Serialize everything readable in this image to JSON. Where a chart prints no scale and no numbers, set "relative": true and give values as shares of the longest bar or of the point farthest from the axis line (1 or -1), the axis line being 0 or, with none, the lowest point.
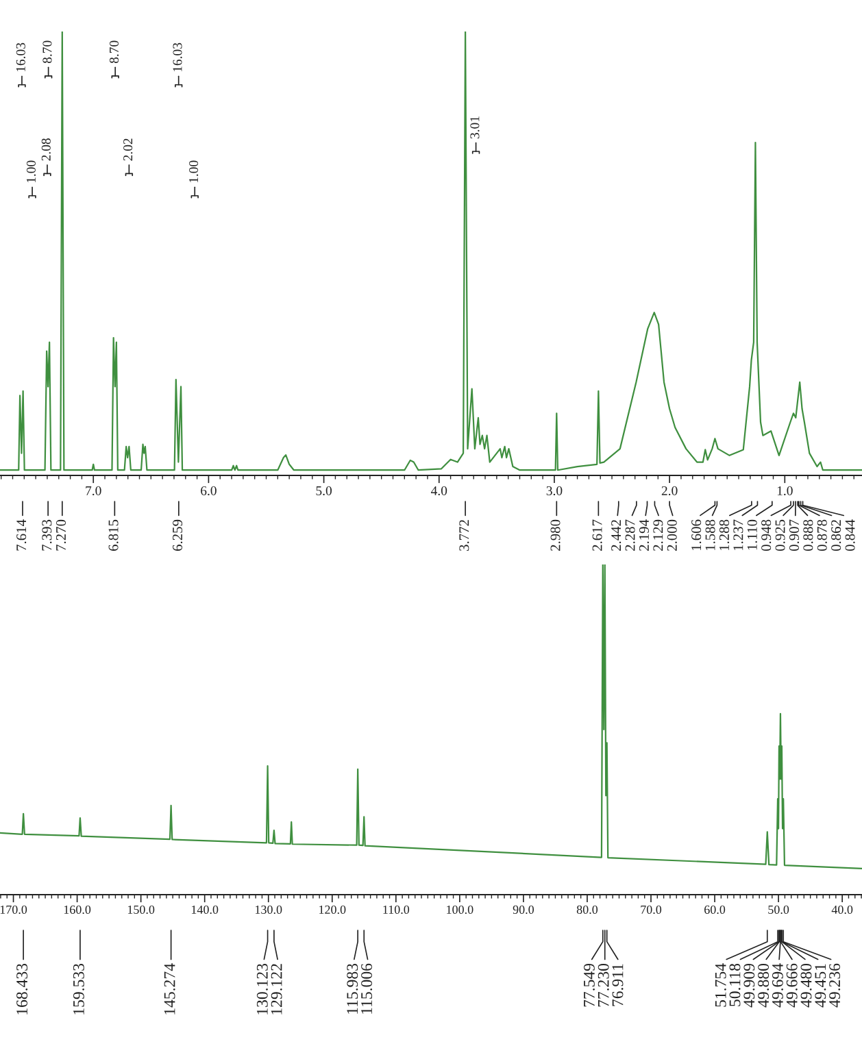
{
  "chart_data": [
    {
      "type": "line",
      "relative": true,
      "color": "#3f8f3f",
      "x": [
        7.81,
        7.648,
        7.637,
        7.623,
        7.61,
        7.598,
        7.42,
        7.405,
        7.393,
        7.381,
        7.368,
        7.285,
        7.27,
        7.255,
        7.01,
        7.0,
        6.99,
        6.838,
        6.825,
        6.812,
        6.8,
        6.788,
        6.73,
        6.715,
        6.703,
        6.69,
        6.675,
        6.585,
        6.57,
        6.56,
        6.55,
        6.535,
        6.296,
        6.283,
        6.262,
        6.24,
        6.228,
        5.8,
        5.785,
        5.772,
        5.757,
        5.745,
        5.4,
        5.35,
        5.33,
        5.3,
        5.26,
        4.3,
        4.25,
        4.22,
        4.18,
        3.98,
        3.9,
        3.84,
        3.79,
        3.772,
        3.752,
        3.715,
        3.69,
        3.66,
        3.645,
        3.625,
        3.605,
        3.585,
        3.56,
        3.47,
        3.455,
        3.43,
        3.415,
        3.395,
        3.36,
        3.3,
        2.99,
        2.98,
        2.97,
        2.8,
        2.63,
        2.617,
        2.604,
        2.57,
        2.43,
        2.29,
        2.19,
        2.133,
        2.095,
        2.048,
        2.0,
        1.952,
        1.857,
        1.762,
        1.71,
        1.69,
        1.67,
        1.63,
        1.606,
        1.58,
        1.48,
        1.36,
        1.305,
        1.29,
        1.27,
        1.255,
        1.24,
        1.21,
        1.19,
        1.12,
        1.05,
        0.952,
        0.925,
        0.905,
        0.87,
        0.85,
        0.83,
        0.786,
        0.72,
        0.69,
        0.67,
        0.33
      ],
      "values": [
        0.012,
        0.012,
        0.18,
        0.05,
        0.19,
        0.012,
        0.012,
        0.28,
        0.2,
        0.3,
        0.012,
        0.012,
        1.0,
        0.012,
        0.012,
        0.025,
        0.012,
        0.012,
        0.31,
        0.2,
        0.3,
        0.012,
        0.012,
        0.065,
        0.04,
        0.065,
        0.012,
        0.012,
        0.07,
        0.05,
        0.065,
        0.012,
        0.012,
        0.216,
        0.03,
        0.2,
        0.012,
        0.012,
        0.022,
        0.012,
        0.022,
        0.012,
        0.012,
        0.04,
        0.046,
        0.025,
        0.012,
        0.012,
        0.034,
        0.03,
        0.012,
        0.015,
        0.036,
        0.03,
        0.05,
        1.0,
        0.06,
        0.195,
        0.06,
        0.13,
        0.07,
        0.09,
        0.06,
        0.09,
        0.03,
        0.06,
        0.04,
        0.065,
        0.04,
        0.06,
        0.02,
        0.012,
        0.012,
        0.14,
        0.012,
        0.02,
        0.025,
        0.19,
        0.028,
        0.03,
        0.06,
        0.21,
        0.33,
        0.367,
        0.34,
        0.21,
        0.15,
        0.108,
        0.06,
        0.03,
        0.03,
        0.058,
        0.035,
        0.06,
        0.083,
        0.06,
        0.045,
        0.058,
        0.2,
        0.26,
        0.3,
        0.75,
        0.3,
        0.12,
        0.09,
        0.1,
        0.045,
        0.12,
        0.14,
        0.13,
        0.21,
        0.15,
        0.12,
        0.05,
        0.02,
        0.03,
        0.012,
        0.012
      ],
      "xlim": [
        7.81,
        0.33
      ],
      "xticks": [
        {
          "value": 7.8,
          "label": null
        },
        {
          "value": 7.7,
          "label": null
        },
        {
          "value": 7.6,
          "label": null
        },
        {
          "value": 7.5,
          "label": null
        },
        {
          "value": 7.4,
          "label": null
        },
        {
          "value": 7.3,
          "label": null
        },
        {
          "value": 7.2,
          "label": null
        },
        {
          "value": 7.1,
          "label": null
        },
        {
          "value": 7.0,
          "label": "7.0"
        },
        {
          "value": 6.9,
          "label": null
        },
        {
          "value": 6.8,
          "label": null
        },
        {
          "value": 6.7,
          "label": null
        },
        {
          "value": 6.6,
          "label": null
        },
        {
          "value": 6.5,
          "label": null
        },
        {
          "value": 6.4,
          "label": null
        },
        {
          "value": 6.3,
          "label": null
        },
        {
          "value": 6.2,
          "label": null
        },
        {
          "value": 6.1,
          "label": null
        },
        {
          "value": 6.0,
          "label": "6.0"
        },
        {
          "value": 5.9,
          "label": null
        },
        {
          "value": 5.8,
          "label": null
        },
        {
          "value": 5.7,
          "label": null
        },
        {
          "value": 5.6,
          "label": null
        },
        {
          "value": 5.5,
          "label": null
        },
        {
          "value": 5.4,
          "label": null
        },
        {
          "value": 5.3,
          "label": null
        },
        {
          "value": 5.2,
          "label": null
        },
        {
          "value": 5.1,
          "label": null
        },
        {
          "value": 5.0,
          "label": "5.0"
        },
        {
          "value": 4.9,
          "label": null
        },
        {
          "value": 4.8,
          "label": null
        },
        {
          "value": 4.7,
          "label": null
        },
        {
          "value": 4.6,
          "label": null
        },
        {
          "value": 4.5,
          "label": null
        },
        {
          "value": 4.4,
          "label": null
        },
        {
          "value": 4.3,
          "label": null
        },
        {
          "value": 4.2,
          "label": null
        },
        {
          "value": 4.1,
          "label": null
        },
        {
          "value": 4.0,
          "label": "4.0"
        },
        {
          "value": 3.9,
          "label": null
        },
        {
          "value": 3.8,
          "label": null
        },
        {
          "value": 3.7,
          "label": null
        },
        {
          "value": 3.6,
          "label": null
        },
        {
          "value": 3.5,
          "label": null
        },
        {
          "value": 3.4,
          "label": null
        },
        {
          "value": 3.3,
          "label": null
        },
        {
          "value": 3.2,
          "label": null
        },
        {
          "value": 3.1,
          "label": null
        },
        {
          "value": 3.0,
          "label": "3.0"
        },
        {
          "value": 2.9,
          "label": null
        },
        {
          "value": 2.8,
          "label": null
        },
        {
          "value": 2.7,
          "label": null
        },
        {
          "value": 2.6,
          "label": null
        },
        {
          "value": 2.5,
          "label": null
        },
        {
          "value": 2.4,
          "label": null
        },
        {
          "value": 2.3,
          "label": null
        },
        {
          "value": 2.2,
          "label": null
        },
        {
          "value": 2.1,
          "label": null
        },
        {
          "value": 2.0,
          "label": "2.0"
        },
        {
          "value": 1.9,
          "label": null
        },
        {
          "value": 1.8,
          "label": null
        },
        {
          "value": 1.7,
          "label": null
        },
        {
          "value": 1.6,
          "label": null
        },
        {
          "value": 1.5,
          "label": null
        },
        {
          "value": 1.4,
          "label": null
        },
        {
          "value": 1.3,
          "label": null
        },
        {
          "value": 1.2,
          "label": null
        },
        {
          "value": 1.1,
          "label": null
        },
        {
          "value": 1.0,
          "label": "1.0"
        },
        {
          "value": 0.9,
          "label": null
        },
        {
          "value": 0.8,
          "label": null
        },
        {
          "value": 0.7,
          "label": null
        },
        {
          "value": 0.6,
          "label": null
        },
        {
          "value": 0.5,
          "label": null
        },
        {
          "value": 0.4,
          "label": null
        }
      ],
      "annotations": [
        {
          "text": "16.03",
          "x": 7.62,
          "y": 0.88
        },
        {
          "text": "8.70",
          "x": 7.39,
          "y": 0.9
        },
        {
          "text": "8.70",
          "x": 6.81,
          "y": 0.9
        },
        {
          "text": "16.03",
          "x": 6.26,
          "y": 0.88
        },
        {
          "text": "1.00",
          "x": 7.53,
          "y": 0.63
        },
        {
          "text": "2.08",
          "x": 7.4,
          "y": 0.68
        },
        {
          "text": "2.02",
          "x": 6.69,
          "y": 0.68
        },
        {
          "text": "1.00",
          "x": 6.12,
          "y": 0.63
        },
        {
          "text": "3.01",
          "x": 3.68,
          "y": 0.73
        },
        {
          "text": "7.614",
          "x": 7.614
        },
        {
          "text": "7.393",
          "x": 7.393
        },
        {
          "text": "7.270",
          "x": 7.27
        },
        {
          "text": "6.815",
          "x": 6.815
        },
        {
          "text": "6.259",
          "x": 6.259
        },
        {
          "text": "3.772",
          "x": 3.772
        },
        {
          "text": "2.980",
          "x": 2.98
        },
        {
          "text": "2.617",
          "x": 2.617
        },
        {
          "text": "2.442",
          "x": 2.442
        },
        {
          "text": "2.287",
          "x": 2.287
        },
        {
          "text": "2.194",
          "x": 2.194
        },
        {
          "text": "2.129",
          "x": 2.129
        },
        {
          "text": "2.000",
          "x": 2.0
        },
        {
          "text": "1.606",
          "x": 1.606
        },
        {
          "text": "1.588",
          "x": 1.588
        },
        {
          "text": "1.288",
          "x": 1.288
        },
        {
          "text": "1.237",
          "x": 1.237
        },
        {
          "text": "1.110",
          "x": 1.11
        },
        {
          "text": "0.948",
          "x": 0.948
        },
        {
          "text": "0.925",
          "x": 0.925
        },
        {
          "text": "0.907",
          "x": 0.907
        },
        {
          "text": "0.888",
          "x": 0.888
        },
        {
          "text": "0.878",
          "x": 0.878
        },
        {
          "text": "0.862",
          "x": 0.862
        },
        {
          "text": "0.844",
          "x": 0.844
        }
      ]
    },
    {
      "type": "line",
      "relative": true,
      "color": "#3f8f3f",
      "x": [
        172.1,
        168.6,
        168.433,
        168.25,
        159.7,
        159.533,
        159.35,
        145.45,
        145.274,
        145.1,
        130.3,
        130.123,
        129.95,
        129.3,
        129.122,
        128.95,
        126.55,
        126.4,
        126.25,
        116.15,
        115.983,
        115.8,
        115.18,
        115.006,
        114.85,
        77.75,
        77.549,
        77.39,
        77.23,
        77.07,
        76.911,
        76.75,
        52.0,
        51.754,
        51.5,
        50.3,
        50.118,
        50.0,
        49.909,
        49.8,
        49.694,
        49.58,
        49.48,
        49.36,
        49.236,
        49.05,
        36.9
      ],
      "values": [
        0.187,
        0.183,
        0.245,
        0.183,
        0.178,
        0.232,
        0.177,
        0.168,
        0.27,
        0.167,
        0.157,
        0.39,
        0.157,
        0.156,
        0.195,
        0.155,
        0.154,
        0.22,
        0.153,
        0.15,
        0.38,
        0.15,
        0.149,
        0.236,
        0.148,
        0.113,
        1.0,
        0.5,
        1.0,
        0.3,
        0.46,
        0.112,
        0.092,
        0.19,
        0.091,
        0.09,
        0.29,
        0.2,
        0.45,
        0.35,
        0.548,
        0.35,
        0.45,
        0.2,
        0.29,
        0.089,
        0.079
      ],
      "xlim": [
        172.1,
        36.9
      ],
      "xticks": [
        {
          "value": 172,
          "label": null
        },
        {
          "value": 171,
          "label": null
        },
        {
          "value": 170,
          "label": "170.0"
        },
        {
          "value": 169,
          "label": null
        },
        {
          "value": 168,
          "label": null
        },
        {
          "value": 167,
          "label": null
        },
        {
          "value": 166,
          "label": null
        },
        {
          "value": 165,
          "label": null
        },
        {
          "value": 164,
          "label": null
        },
        {
          "value": 163,
          "label": null
        },
        {
          "value": 162,
          "label": null
        },
        {
          "value": 161,
          "label": null
        },
        {
          "value": 160,
          "label": "160.0"
        },
        {
          "value": 159,
          "label": null
        },
        {
          "value": 158,
          "label": null
        },
        {
          "value": 157,
          "label": null
        },
        {
          "value": 156,
          "label": null
        },
        {
          "value": 155,
          "label": null
        },
        {
          "value": 154,
          "label": null
        },
        {
          "value": 153,
          "label": null
        },
        {
          "value": 152,
          "label": null
        },
        {
          "value": 151,
          "label": null
        },
        {
          "value": 150,
          "label": "150.0"
        },
        {
          "value": 149,
          "label": null
        },
        {
          "value": 148,
          "label": null
        },
        {
          "value": 147,
          "label": null
        },
        {
          "value": 146,
          "label": null
        },
        {
          "value": 145,
          "label": null
        },
        {
          "value": 144,
          "label": null
        },
        {
          "value": 143,
          "label": null
        },
        {
          "value": 142,
          "label": null
        },
        {
          "value": 141,
          "label": null
        },
        {
          "value": 140,
          "label": "140.0"
        },
        {
          "value": 139,
          "label": null
        },
        {
          "value": 138,
          "label": null
        },
        {
          "value": 137,
          "label": null
        },
        {
          "value": 136,
          "label": null
        },
        {
          "value": 135,
          "label": null
        },
        {
          "value": 134,
          "label": null
        },
        {
          "value": 133,
          "label": null
        },
        {
          "value": 132,
          "label": null
        },
        {
          "value": 131,
          "label": null
        },
        {
          "value": 130,
          "label": "130.0"
        },
        {
          "value": 129,
          "label": null
        },
        {
          "value": 128,
          "label": null
        },
        {
          "value": 127,
          "label": null
        },
        {
          "value": 126,
          "label": null
        },
        {
          "value": 125,
          "label": null
        },
        {
          "value": 124,
          "label": null
        },
        {
          "value": 123,
          "label": null
        },
        {
          "value": 122,
          "label": null
        },
        {
          "value": 121,
          "label": null
        },
        {
          "value": 120,
          "label": "120.0"
        },
        {
          "value": 119,
          "label": null
        },
        {
          "value": 118,
          "label": null
        },
        {
          "value": 117,
          "label": null
        },
        {
          "value": 116,
          "label": null
        },
        {
          "value": 115,
          "label": null
        },
        {
          "value": 114,
          "label": null
        },
        {
          "value": 113,
          "label": null
        },
        {
          "value": 112,
          "label": null
        },
        {
          "value": 111,
          "label": null
        },
        {
          "value": 110,
          "label": "110.0"
        },
        {
          "value": 109,
          "label": null
        },
        {
          "value": 108,
          "label": null
        },
        {
          "value": 107,
          "label": null
        },
        {
          "value": 106,
          "label": null
        },
        {
          "value": 105,
          "label": null
        },
        {
          "value": 104,
          "label": null
        },
        {
          "value": 103,
          "label": null
        },
        {
          "value": 102,
          "label": null
        },
        {
          "value": 101,
          "label": null
        },
        {
          "value": 100,
          "label": "100.0"
        },
        {
          "value": 99,
          "label": null
        },
        {
          "value": 98,
          "label": null
        },
        {
          "value": 97,
          "label": null
        },
        {
          "value": 96,
          "label": null
        },
        {
          "value": 95,
          "label": null
        },
        {
          "value": 94,
          "label": null
        },
        {
          "value": 93,
          "label": null
        },
        {
          "value": 92,
          "label": null
        },
        {
          "value": 91,
          "label": null
        },
        {
          "value": 90,
          "label": "90.0"
        },
        {
          "value": 89,
          "label": null
        },
        {
          "value": 88,
          "label": null
        },
        {
          "value": 87,
          "label": null
        },
        {
          "value": 86,
          "label": null
        },
        {
          "value": 85,
          "label": null
        },
        {
          "value": 84,
          "label": null
        },
        {
          "value": 83,
          "label": null
        },
        {
          "value": 82,
          "label": null
        },
        {
          "value": 81,
          "label": null
        },
        {
          "value": 80,
          "label": "80.0"
        },
        {
          "value": 79,
          "label": null
        },
        {
          "value": 78,
          "label": null
        },
        {
          "value": 77,
          "label": null
        },
        {
          "value": 76,
          "label": null
        },
        {
          "value": 75,
          "label": null
        },
        {
          "value": 74,
          "label": null
        },
        {
          "value": 73,
          "label": null
        },
        {
          "value": 72,
          "label": null
        },
        {
          "value": 71,
          "label": null
        },
        {
          "value": 70,
          "label": "70.0"
        },
        {
          "value": 69,
          "label": null
        },
        {
          "value": 68,
          "label": null
        },
        {
          "value": 67,
          "label": null
        },
        {
          "value": 66,
          "label": null
        },
        {
          "value": 65,
          "label": null
        },
        {
          "value": 64,
          "label": null
        },
        {
          "value": 63,
          "label": null
        },
        {
          "value": 62,
          "label": null
        },
        {
          "value": 61,
          "label": null
        },
        {
          "value": 60,
          "label": "60.0"
        },
        {
          "value": 59,
          "label": null
        },
        {
          "value": 58,
          "label": null
        },
        {
          "value": 57,
          "label": null
        },
        {
          "value": 56,
          "label": null
        },
        {
          "value": 55,
          "label": null
        },
        {
          "value": 54,
          "label": null
        },
        {
          "value": 53,
          "label": null
        },
        {
          "value": 52,
          "label": null
        },
        {
          "value": 51,
          "label": null
        },
        {
          "value": 50,
          "label": "50.0"
        },
        {
          "value": 49,
          "label": null
        },
        {
          "value": 48,
          "label": null
        },
        {
          "value": 47,
          "label": null
        },
        {
          "value": 46,
          "label": null
        },
        {
          "value": 45,
          "label": null
        },
        {
          "value": 44,
          "label": null
        },
        {
          "value": 43,
          "label": null
        },
        {
          "value": 42,
          "label": null
        },
        {
          "value": 41,
          "label": null
        },
        {
          "value": 40,
          "label": "40.0"
        },
        {
          "value": 39,
          "label": null
        },
        {
          "value": 38,
          "label": null
        },
        {
          "value": 37,
          "label": null
        }
      ],
      "annotations": [
        {
          "text": "168.433",
          "x": 168.433
        },
        {
          "text": "159.533",
          "x": 159.533
        },
        {
          "text": "145.274",
          "x": 145.274
        },
        {
          "text": "130.123",
          "x": 130.123
        },
        {
          "text": "129.122",
          "x": 129.122
        },
        {
          "text": "115.983",
          "x": 115.983
        },
        {
          "text": "115.006",
          "x": 115.006
        },
        {
          "text": "77.549",
          "x": 77.549
        },
        {
          "text": "77.230",
          "x": 77.23
        },
        {
          "text": "76.911",
          "x": 76.911
        },
        {
          "text": "51.754",
          "x": 51.754
        },
        {
          "text": "50.118",
          "x": 50.118
        },
        {
          "text": "49.909",
          "x": 49.909
        },
        {
          "text": "49.880",
          "x": 49.88
        },
        {
          "text": "49.694",
          "x": 49.694
        },
        {
          "text": "49.666",
          "x": 49.666
        },
        {
          "text": "49.480",
          "x": 49.48
        },
        {
          "text": "49.451",
          "x": 49.451
        },
        {
          "text": "49.236",
          "x": 49.236
        }
      ]
    }
  ]
}
